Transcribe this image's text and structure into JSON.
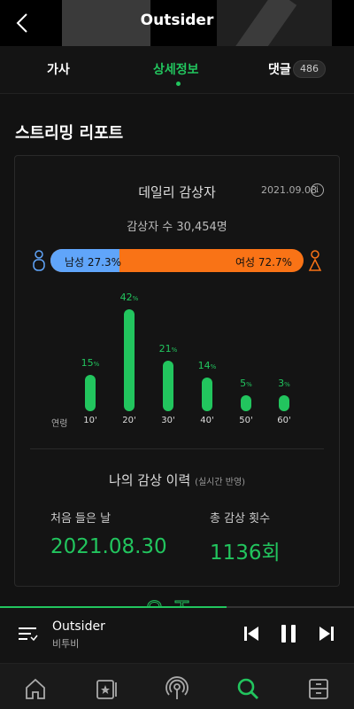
{
  "header": {
    "title": "Outsider"
  },
  "tabs": [
    {
      "label": "가사"
    },
    {
      "label": "상세정보"
    },
    {
      "label": "댓글",
      "count": "486"
    }
  ],
  "section": {
    "title": "스트리밍 리포트"
  },
  "daily": {
    "title": "데일리 감상자",
    "date": "2021.09.08",
    "listeners": "감상자 수 30,454명",
    "male_label": "남성 27.3%",
    "female_label": "여성 72.7%",
    "male_percent": 27.3,
    "female_percent": 72.7,
    "age_axis_label": "연령"
  },
  "chart_data": {
    "type": "bar",
    "categories": [
      "10'",
      "20'",
      "30'",
      "40'",
      "50'",
      "60'"
    ],
    "values": [
      15,
      42,
      21,
      14,
      5,
      3
    ],
    "unit": "%",
    "color": "#22c55e",
    "ylim": [
      0,
      42
    ]
  },
  "history": {
    "title": "나의 감상 이력",
    "subtitle": "(실시간 반영)",
    "first_label": "처음 들은 날",
    "first_value": "2021.08.30",
    "total_label": "총 감상 횟수",
    "total_value": "1136회"
  },
  "overlay": {
    "text": "ㅇㅈ"
  },
  "player": {
    "title": "Outsider",
    "artist": "비투비",
    "progress": 0.64
  },
  "colors": {
    "accent": "#22c55e",
    "male": "#60a5fa",
    "female": "#f97316",
    "background": "#121212"
  },
  "icons": {
    "nav": [
      "home-icon",
      "library-icon",
      "podcast-icon",
      "search-icon",
      "storage-icon"
    ],
    "active_nav": "search-icon"
  }
}
